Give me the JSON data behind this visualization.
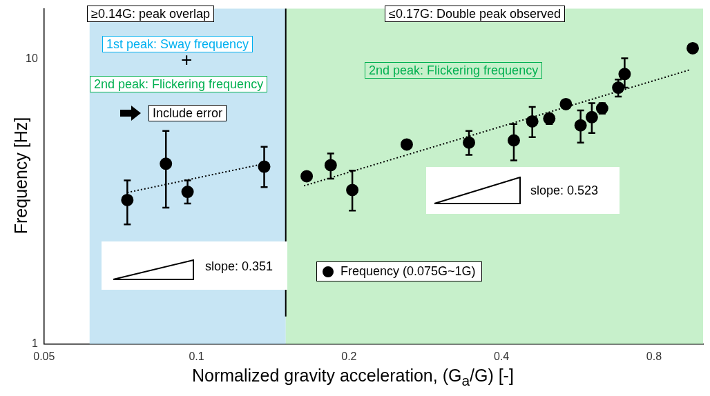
{
  "chart_data": {
    "type": "scatter",
    "xlabel": "Normalized gravity acceleration, (G$_{a}$/G) [-]",
    "ylabel": "Frequency [Hz]",
    "log": "xy",
    "xlim": [
      0.05,
      1
    ],
    "ylim": [
      1,
      15
    ],
    "xticks": [
      0.05,
      0.1,
      0.2,
      0.4,
      0.8
    ],
    "yticks": [
      1,
      10
    ],
    "grid": false,
    "legend": "bottom",
    "marker": "circle",
    "ref_lines": [
      {
        "axis": "x",
        "value": 0.15,
        "color": "#000000"
      }
    ],
    "bands": [
      {
        "axis": "x",
        "from": 0.0615,
        "to": 0.15,
        "color": "#b4dcf0"
      },
      {
        "axis": "x",
        "from": 0.15,
        "to": 1,
        "color": "#b4ebb9"
      }
    ],
    "annotations": [
      "≥0.14G:  peak overlap",
      "≤0.17G: Double peak observed",
      "1st peak:  Sway frequency",
      "+",
      "2nd peak: Flickering frequency",
      "Include error",
      "2nd peak: Flickering frequency",
      "slope: 0.523",
      "slope: 0.351"
    ],
    "series": [
      {
        "name": "Frequency (0.075G~1G)",
        "type": "scatter",
        "color": "#000000",
        "x": [
          0.073,
          0.087,
          0.096,
          0.136,
          0.165,
          0.184,
          0.203,
          0.26,
          0.345,
          0.423,
          0.46,
          0.497,
          0.536,
          0.573,
          0.603,
          0.632,
          0.68,
          0.7,
          0.954
        ],
        "values": [
          3.2,
          4.29,
          3.42,
          4.19,
          3.88,
          4.24,
          3.47,
          5.01,
          5.09,
          5.18,
          6.04,
          6.18,
          6.94,
          5.85,
          6.25,
          6.71,
          7.93,
          8.85,
          10.9
        ],
        "errors": [
          [
            2.63,
            3.75
          ],
          [
            3.01,
            5.59
          ],
          [
            3.11,
            3.75
          ],
          [
            3.55,
            4.92
          ],
          null,
          [
            3.8,
            4.66
          ],
          [
            2.94,
            4.06
          ],
          null,
          [
            4.61,
            5.59
          ],
          [
            4.41,
            5.91
          ],
          [
            5.32,
            6.79
          ],
          [
            5.91,
            6.43
          ],
          null,
          [
            5.09,
            6.6
          ],
          [
            5.5,
            7.0
          ],
          [
            6.43,
            7.0
          ],
          [
            7.38,
            8.47
          ],
          [
            7.93,
            10.05
          ],
          null
        ]
      },
      {
        "type": "line",
        "color": "#000000",
        "line_style": "dotted",
        "marker": "none",
        "x": [
          0.073,
          0.136
        ],
        "values": [
          3.4,
          4.29
        ]
      },
      {
        "type": "line",
        "color": "#000000",
        "line_style": "dotted",
        "marker": "none",
        "x": [
          0.163,
          0.94
        ],
        "values": [
          3.59,
          9.15
        ]
      }
    ]
  }
}
